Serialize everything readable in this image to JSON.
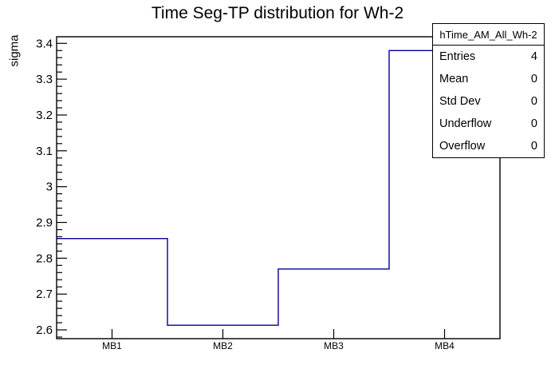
{
  "page": {
    "background": "#ffffff",
    "foreground": "#000000"
  },
  "chart_data": {
    "type": "bar",
    "subtype": "root-step-histogram-outline",
    "title": "Time Seg-TP distribution for Wh-2",
    "xlabel": "",
    "ylabel": "sigma",
    "categories": [
      "MB1",
      "MB2",
      "MB3",
      "MB4"
    ],
    "values": [
      2.855,
      2.613,
      2.77,
      3.38
    ],
    "ylim": [
      2.5755,
      3.4185
    ],
    "y_major_ticks": [
      "2.6",
      "2.7",
      "2.8",
      "2.9",
      "3",
      "3.1",
      "3.2",
      "3.3",
      "3.4"
    ],
    "y_minor_tick_step": 0.02,
    "grid": false,
    "legend_position": "none",
    "line_color": "#00009b",
    "frame_color": "#000000"
  },
  "stats_box": {
    "title": "hTime_AM_All_Wh-2",
    "rows": [
      {
        "label": "Entries",
        "value": "4"
      },
      {
        "label": "Mean",
        "value": "0"
      },
      {
        "label": "Std Dev",
        "value": "0"
      },
      {
        "label": "Underflow",
        "value": "0"
      },
      {
        "label": "Overflow",
        "value": "0"
      }
    ]
  }
}
